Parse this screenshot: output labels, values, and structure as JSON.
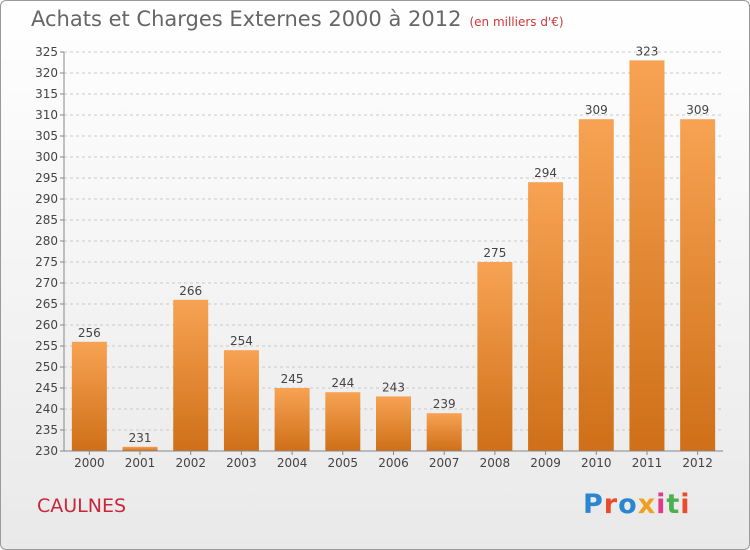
{
  "header": {
    "title": "Achats et Charges Externes 2000 à 2012",
    "subtitle": "(en milliers d'€)"
  },
  "footer": {
    "commune": "CAULNES",
    "logo_text": "Proxiti",
    "logo_colors": [
      "#2a86cf",
      "#e84c2a",
      "#2a86cf",
      "#f0a020",
      "#e03a8a",
      "#4caf50",
      "#e84c2a"
    ]
  },
  "colors": {
    "bar_top": "#f7a353",
    "bar_bottom": "#cf6f18",
    "grid": "#c9c9c9",
    "title": "#666666",
    "commune": "#c8263b"
  },
  "chart_data": {
    "type": "bar",
    "title": "Achats et Charges Externes 2000 à 2012",
    "subtitle": "(en milliers d'€)",
    "categories": [
      "2000",
      "2001",
      "2002",
      "2003",
      "2004",
      "2005",
      "2006",
      "2007",
      "2008",
      "2009",
      "2010",
      "2011",
      "2012"
    ],
    "values": [
      256,
      231,
      266,
      254,
      245,
      244,
      243,
      239,
      275,
      294,
      309,
      323,
      309
    ],
    "ylim": [
      230,
      325
    ],
    "yticks": [
      230,
      235,
      240,
      245,
      250,
      255,
      260,
      265,
      270,
      275,
      280,
      285,
      290,
      295,
      300,
      305,
      310,
      315,
      320,
      325
    ],
    "grid": true
  }
}
